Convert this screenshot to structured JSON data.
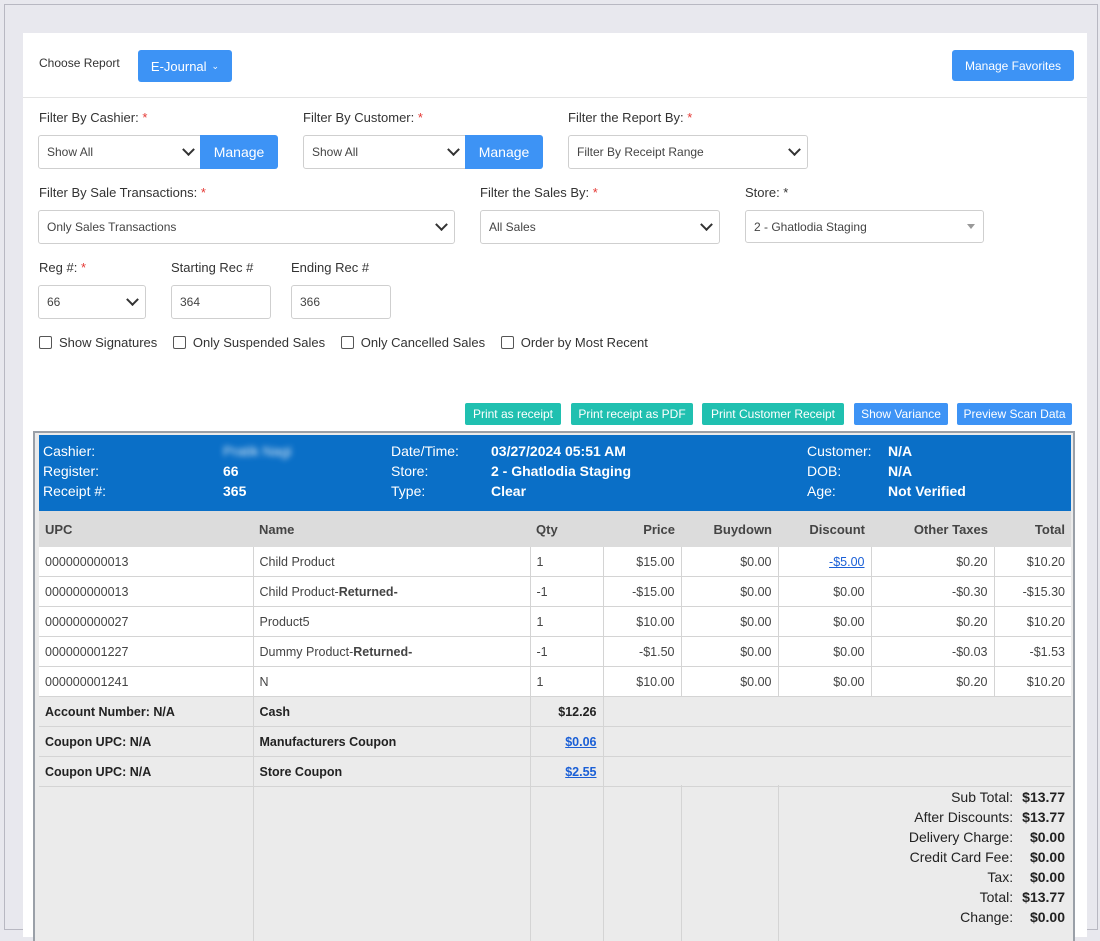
{
  "header": {
    "choose_report_label": "Choose Report",
    "report_button": "E-Journal",
    "manage_favorites": "Manage Favorites"
  },
  "filters": {
    "cashier": {
      "label": "Filter By Cashier:",
      "required": "*",
      "value": "Show All",
      "manage": "Manage"
    },
    "customer": {
      "label": "Filter By Customer:",
      "required": "*",
      "value": "Show All",
      "manage": "Manage"
    },
    "report_by": {
      "label": "Filter the Report By:",
      "required": "*",
      "value": "Filter By Receipt Range"
    },
    "sale_transactions": {
      "label": "Filter By Sale Transactions:",
      "required": "*",
      "value": "Only Sales Transactions"
    },
    "sales_by": {
      "label": "Filter the Sales By:",
      "required": "*",
      "value": "All Sales"
    },
    "store": {
      "label": "Store: *",
      "value": "2 - Ghatlodia Staging"
    },
    "reg": {
      "label": "Reg #:",
      "required": "*",
      "value": "66"
    },
    "starting_rec": {
      "label": "Starting Rec #",
      "value": "364"
    },
    "ending_rec": {
      "label": "Ending Rec #",
      "value": "366"
    }
  },
  "checkboxes": [
    "Show Signatures",
    "Only Suspended Sales",
    "Only Cancelled Sales",
    "Order by Most Recent"
  ],
  "actions": {
    "print_receipt": "Print as receipt",
    "print_pdf": "Print receipt as PDF",
    "print_customer": "Print Customer Receipt",
    "show_variance": "Show Variance",
    "preview_scan": "Preview Scan Data"
  },
  "receipt": {
    "cashier_label": "Cashier:",
    "cashier_value": "Pratik Nagi",
    "register_label": "Register:",
    "register_value": "66",
    "receipt_label": "Receipt #:",
    "receipt_value": "365",
    "datetime_label": "Date/Time:",
    "datetime_value": "03/27/2024 05:51 AM",
    "store_label": "Store:",
    "store_value": "2 - Ghatlodia Staging",
    "type_label": "Type:",
    "type_value": "Clear",
    "customer_label": "Customer:",
    "customer_value": "N/A",
    "dob_label": "DOB:",
    "dob_value": "N/A",
    "age_label": "Age:",
    "age_value": "Not Verified"
  },
  "table": {
    "headers": [
      "UPC",
      "Name",
      "Qty",
      "Price",
      "Buydown",
      "Discount",
      "Other Taxes",
      "Total"
    ],
    "rows": [
      {
        "upc": "000000000013",
        "name": "Child Product",
        "name_suffix": "",
        "qty": "1",
        "price": "$15.00",
        "buydown": "$0.00",
        "discount": "-$5.00",
        "taxes": "$0.20",
        "total": "$10.20"
      },
      {
        "upc": "000000000013",
        "name": "Child Product-",
        "name_suffix": "Returned-",
        "qty": "-1",
        "price": "-$15.00",
        "buydown": "$0.00",
        "discount": "$0.00",
        "taxes": "-$0.30",
        "total": "-$15.30"
      },
      {
        "upc": "000000000027",
        "name": "Product5",
        "name_suffix": "",
        "qty": "1",
        "price": "$10.00",
        "buydown": "$0.00",
        "discount": "$0.00",
        "taxes": "$0.20",
        "total": "$10.20"
      },
      {
        "upc": "000000001227",
        "name": "Dummy Product-",
        "name_suffix": "Returned-",
        "qty": "-1",
        "price": "-$1.50",
        "buydown": "$0.00",
        "discount": "$0.00",
        "taxes": "-$0.03",
        "total": "-$1.53"
      },
      {
        "upc": "000000001241",
        "name": "N",
        "name_suffix": "",
        "qty": "1",
        "price": "$10.00",
        "buydown": "$0.00",
        "discount": "$0.00",
        "taxes": "$0.20",
        "total": "$10.20"
      }
    ],
    "payments": [
      {
        "left": "Account Number: N/A",
        "name": "Cash",
        "amount": "$12.26"
      },
      {
        "left": "Coupon UPC: N/A",
        "name": "Manufacturers Coupon",
        "amount": "$0.06"
      },
      {
        "left": "Coupon UPC: N/A",
        "name": "Store Coupon",
        "amount": "$2.55"
      }
    ]
  },
  "totals": [
    {
      "label": "Sub Total:",
      "value": "$13.77"
    },
    {
      "label": "After Discounts:",
      "value": "$13.77"
    },
    {
      "label": "Delivery Charge:",
      "value": "$0.00"
    },
    {
      "label": "Credit Card Fee:",
      "value": "$0.00"
    },
    {
      "label": "Tax:",
      "value": "$0.00"
    },
    {
      "label": "Total:",
      "value": "$13.77"
    },
    {
      "label": "Change:",
      "value": "$0.00"
    }
  ]
}
